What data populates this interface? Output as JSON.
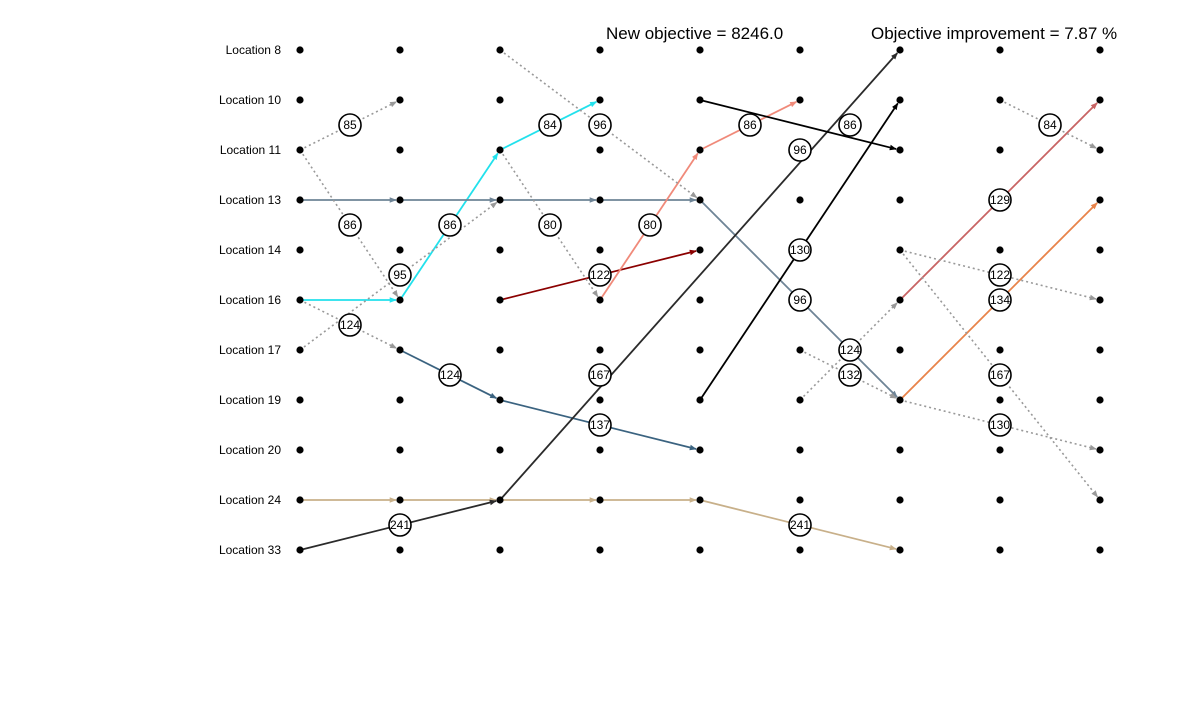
{
  "header": {
    "new_objective": "New objective = 8246.0",
    "objective_improvement": "Objective improvement = 7.87 %"
  },
  "locations": [
    "Location 8",
    "Location 10",
    "Location 11",
    "Location 13",
    "Location 14",
    "Location 16",
    "Location 17",
    "Location 19",
    "Location 20",
    "Location 24",
    "Location 33"
  ],
  "num_steps": 9,
  "routes": [
    {
      "id": "cyan",
      "color": "#22e1ec",
      "style": "solid",
      "path": [
        [
          0,
          5
        ],
        [
          1,
          5
        ],
        [
          2,
          2
        ],
        [
          3,
          1
        ]
      ]
    },
    {
      "id": "slate",
      "color": "#6e8496",
      "style": "solid",
      "path": [
        [
          0,
          3
        ],
        [
          1,
          3
        ],
        [
          2,
          3
        ],
        [
          3,
          3
        ],
        [
          4,
          3
        ],
        [
          6,
          7
        ]
      ]
    },
    {
      "id": "steel-blue",
      "color": "#3b6380",
      "style": "solid",
      "path": [
        [
          1,
          6
        ],
        [
          2,
          7
        ],
        [
          4,
          8
        ]
      ]
    },
    {
      "id": "tan",
      "color": "#c8b08a",
      "style": "solid",
      "path": [
        [
          0,
          9
        ],
        [
          1,
          9
        ],
        [
          2,
          9
        ],
        [
          3,
          9
        ],
        [
          4,
          9
        ],
        [
          6,
          10
        ]
      ]
    },
    {
      "id": "charcoal",
      "color": "#2b2b2b",
      "style": "solid",
      "path": [
        [
          0,
          10
        ],
        [
          2,
          9
        ],
        [
          6,
          0
        ]
      ]
    },
    {
      "id": "dark-red",
      "color": "#8b0000",
      "style": "solid",
      "path": [
        [
          2,
          5
        ],
        [
          4,
          4
        ]
      ]
    },
    {
      "id": "salmon",
      "color": "#f08a7a",
      "style": "solid",
      "path": [
        [
          3,
          5
        ],
        [
          4,
          2
        ],
        [
          5,
          1
        ]
      ]
    },
    {
      "id": "black",
      "color": "#000000",
      "style": "solid",
      "path": [
        [
          4,
          1
        ],
        [
          6,
          2
        ]
      ]
    },
    {
      "id": "black-2",
      "color": "#000000",
      "style": "solid",
      "path": [
        [
          4,
          7
        ],
        [
          6,
          1
        ]
      ]
    },
    {
      "id": "indian-red",
      "color": "#c86464",
      "style": "solid",
      "path": [
        [
          6,
          5
        ],
        [
          8,
          1
        ]
      ]
    },
    {
      "id": "orange",
      "color": "#e8834a",
      "style": "solid",
      "path": [
        [
          6,
          7
        ],
        [
          8,
          3
        ]
      ]
    },
    {
      "id": "gray-a",
      "color": "#999999",
      "style": "dotted",
      "path": [
        [
          0,
          2
        ],
        [
          1,
          1
        ]
      ]
    },
    {
      "id": "gray-b",
      "color": "#999999",
      "style": "dotted",
      "path": [
        [
          0,
          2
        ],
        [
          1,
          5
        ]
      ]
    },
    {
      "id": "gray-c",
      "color": "#999999",
      "style": "dotted",
      "path": [
        [
          0,
          5
        ],
        [
          1,
          6
        ]
      ]
    },
    {
      "id": "gray-d",
      "color": "#999999",
      "style": "dotted",
      "path": [
        [
          0,
          6
        ],
        [
          2,
          3
        ]
      ]
    },
    {
      "id": "gray-e",
      "color": "#999999",
      "style": "dotted",
      "path": [
        [
          2,
          0
        ],
        [
          4,
          3
        ]
      ]
    },
    {
      "id": "gray-f",
      "color": "#999999",
      "style": "dotted",
      "path": [
        [
          2,
          2
        ],
        [
          3,
          5
        ]
      ]
    },
    {
      "id": "gray-g",
      "color": "#999999",
      "style": "dotted",
      "path": [
        [
          5,
          6
        ],
        [
          6,
          7
        ]
      ]
    },
    {
      "id": "gray-h",
      "color": "#999999",
      "style": "dotted",
      "path": [
        [
          5,
          7
        ],
        [
          6,
          5
        ]
      ]
    },
    {
      "id": "gray-i",
      "color": "#999999",
      "style": "dotted",
      "path": [
        [
          6,
          4
        ],
        [
          8,
          5
        ]
      ]
    },
    {
      "id": "gray-j",
      "color": "#999999",
      "style": "dotted",
      "path": [
        [
          6,
          4
        ],
        [
          8,
          9
        ]
      ]
    },
    {
      "id": "gray-k",
      "color": "#999999",
      "style": "dotted",
      "path": [
        [
          6,
          7
        ],
        [
          8,
          8
        ]
      ]
    },
    {
      "id": "gray-l",
      "color": "#999999",
      "style": "dotted",
      "path": [
        [
          7,
          1
        ],
        [
          8,
          2
        ]
      ]
    }
  ],
  "labels": [
    {
      "text": "85",
      "at": [
        0.5,
        1.5
      ]
    },
    {
      "text": "86",
      "at": [
        0.5,
        3.5
      ]
    },
    {
      "text": "95",
      "at": [
        1,
        4.5
      ]
    },
    {
      "text": "124",
      "at": [
        0.5,
        5.5
      ]
    },
    {
      "text": "241",
      "at": [
        1,
        9.5
      ]
    },
    {
      "text": "86",
      "at": [
        1.5,
        3.5
      ]
    },
    {
      "text": "124",
      "at": [
        1.5,
        6.5
      ]
    },
    {
      "text": "84",
      "at": [
        2.5,
        1.5
      ]
    },
    {
      "text": "80",
      "at": [
        2.5,
        3.5
      ]
    },
    {
      "text": "96",
      "at": [
        3,
        1.5
      ]
    },
    {
      "text": "122",
      "at": [
        3,
        4.5
      ]
    },
    {
      "text": "167",
      "at": [
        3,
        6.5
      ]
    },
    {
      "text": "137",
      "at": [
        3,
        7.5
      ]
    },
    {
      "text": "80",
      "at": [
        3.5,
        3.5
      ]
    },
    {
      "text": "86",
      "at": [
        4.5,
        1.5
      ]
    },
    {
      "text": "96",
      "at": [
        5,
        2
      ]
    },
    {
      "text": "130",
      "at": [
        5,
        4
      ]
    },
    {
      "text": "96",
      "at": [
        5,
        5
      ]
    },
    {
      "text": "241",
      "at": [
        5,
        9.5
      ]
    },
    {
      "text": "86",
      "at": [
        5.5,
        1.5
      ]
    },
    {
      "text": "124",
      "at": [
        5.5,
        6
      ]
    },
    {
      "text": "132",
      "at": [
        5.5,
        6.5
      ]
    },
    {
      "text": "129",
      "at": [
        7,
        3
      ]
    },
    {
      "text": "122",
      "at": [
        7,
        4.5
      ]
    },
    {
      "text": "134",
      "at": [
        7,
        5
      ]
    },
    {
      "text": "167",
      "at": [
        7,
        6.5
      ]
    },
    {
      "text": "130",
      "at": [
        7,
        7.5
      ]
    },
    {
      "text": "84",
      "at": [
        7.5,
        1.5
      ]
    }
  ]
}
